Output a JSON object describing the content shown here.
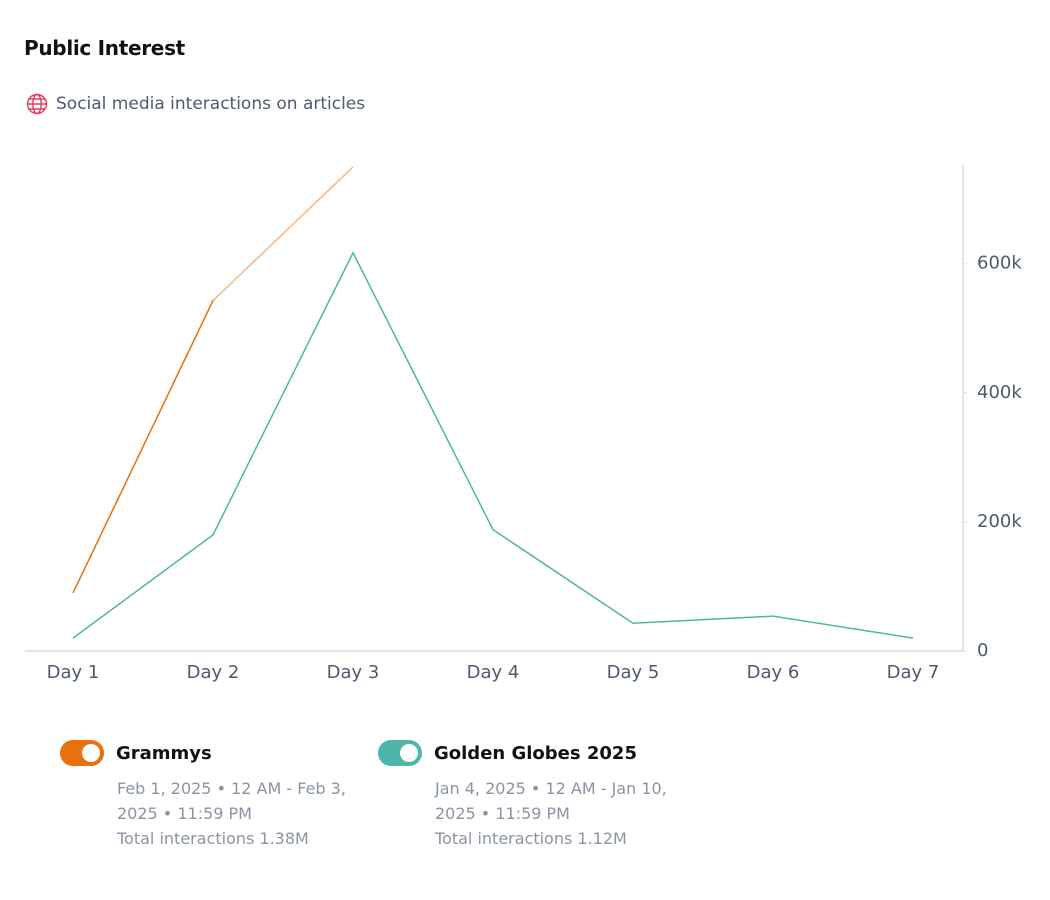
{
  "chart_data": {
    "type": "line",
    "title": "Public Interest",
    "subtitle": "Social media interactions on articles",
    "categories": [
      "Day 1",
      "Day 2",
      "Day 3",
      "Day 4",
      "Day 5",
      "Day 6",
      "Day 7"
    ],
    "series": [
      {
        "name": "Grammys",
        "color": "#e8700e",
        "values": [
          90000,
          543000,
          750000,
          null,
          null,
          null,
          null
        ],
        "period": "Feb 1, 2025 • 12 AM - Feb 3, 2025 • 11:59 PM",
        "total": "Total interactions 1.38M"
      },
      {
        "name": "Golden Globes 2025",
        "color": "#4db6a9",
        "values": [
          20000,
          180000,
          617000,
          188000,
          43000,
          54000,
          20000
        ],
        "period": "Jan 4, 2025 • 12 AM - Jan 10, 2025 • 11:59 PM",
        "total": "Total interactions 1.12M"
      }
    ],
    "ylim": [
      0,
      753000
    ],
    "yticks": [
      0,
      {
        "value": 200000,
        "label": "200k"
      },
      {
        "value": 400000,
        "label": "400k"
      },
      {
        "value": 600000,
        "label": "600k"
      }
    ],
    "y_axis_side": "right"
  }
}
